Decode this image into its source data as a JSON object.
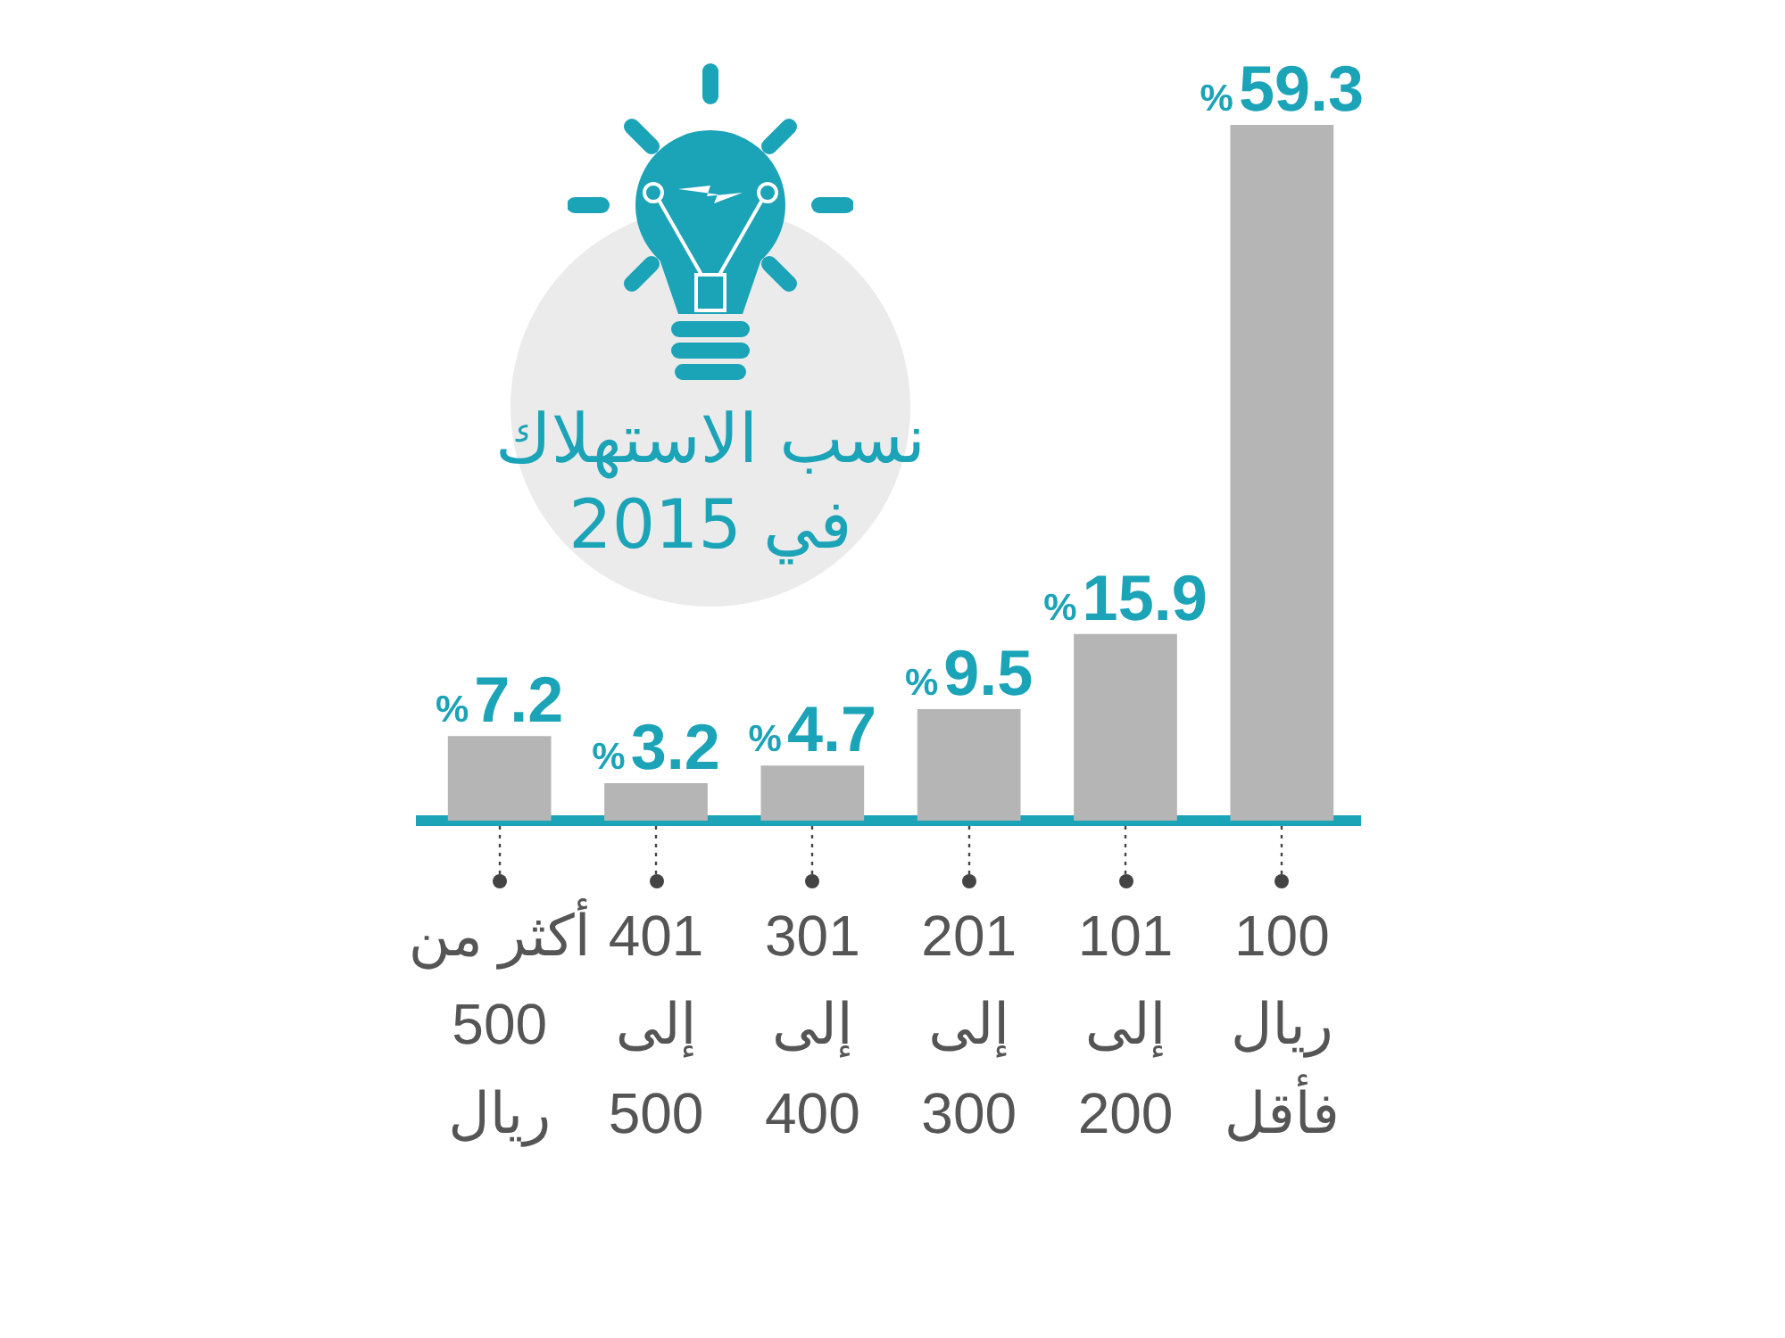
{
  "chart_data": {
    "type": "bar",
    "title": "نسب الاستهلاك في 2015",
    "categories": [
      "أكثر من\n500\nريال",
      "401\nإلى\n500",
      "301\nإلى\n400",
      "201\nإلى\n300",
      "101\nإلى\n200",
      "100\nريال\nفأقل"
    ],
    "values": [
      7.2,
      3.2,
      4.7,
      9.5,
      15.9,
      59.3
    ],
    "color": "#b5b5b5",
    "value_labels": [
      "%7.2",
      "%3.2",
      "%4.7",
      "%9.5",
      "%15.9",
      "%59.3"
    ],
    "tick_labels": "x"
  }
}
